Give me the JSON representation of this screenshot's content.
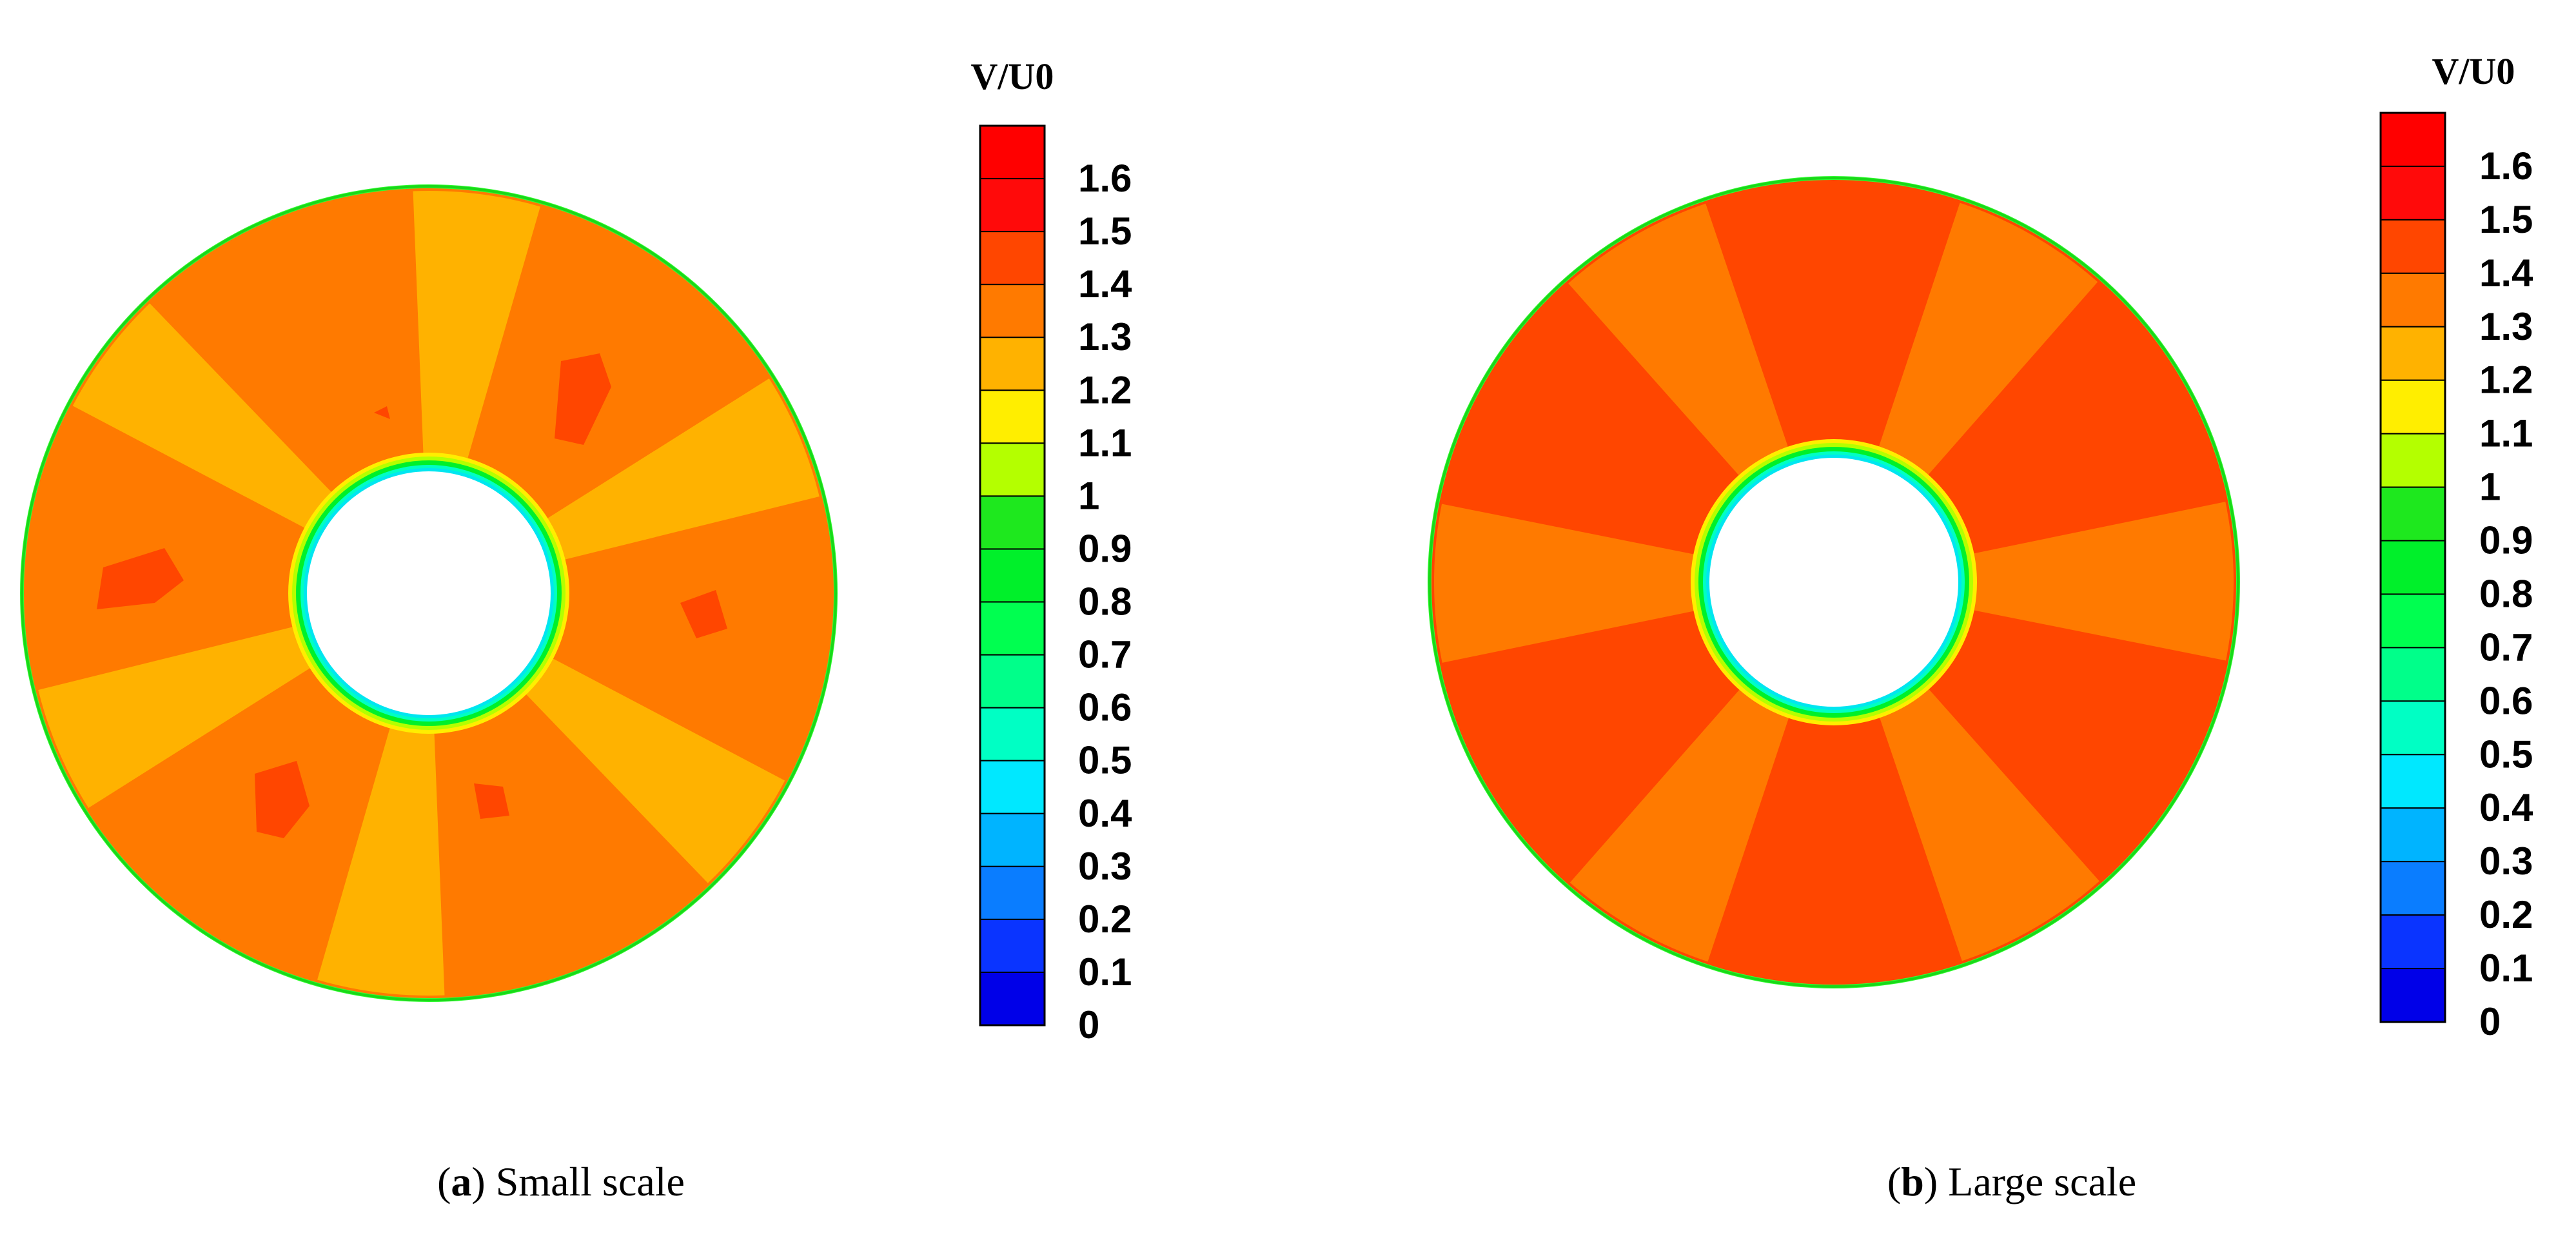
{
  "chart_data": [
    {
      "type": "contour",
      "panel_letter": "a",
      "caption": "Small scale",
      "colorbar": {
        "title": "V/U0",
        "min": 0,
        "max": 1.7,
        "ticks": [
          "1.6",
          "1.5",
          "1.4",
          "1.3",
          "1.2",
          "1.1",
          "1",
          "0.9",
          "0.8",
          "0.7",
          "0.6",
          "0.5",
          "0.4",
          "0.3",
          "0.2",
          "0.1",
          "0"
        ]
      },
      "field": {
        "background_level": 1.35,
        "spoke_level": 1.25,
        "hotspot_level": 1.45,
        "spoke_count": 6
      }
    },
    {
      "type": "contour",
      "panel_letter": "b",
      "caption": "Large scale",
      "colorbar": {
        "title": "V/U0",
        "min": 0,
        "max": 1.7,
        "ticks": [
          "1.6",
          "1.5",
          "1.4",
          "1.3",
          "1.2",
          "1.1",
          "1",
          "0.9",
          "0.8",
          "0.7",
          "0.6",
          "0.5",
          "0.4",
          "0.3",
          "0.2",
          "0.1",
          "0"
        ]
      },
      "field": {
        "background_level": 1.45,
        "spoke_level": 1.35,
        "spoke_count": 6
      }
    }
  ],
  "colors": {
    "levels": [
      "#0000e8",
      "#0a34ff",
      "#0a7dff",
      "#00b4ff",
      "#00e8ff",
      "#00ffc4",
      "#00ff8a",
      "#00ff50",
      "#00f02a",
      "#1ee81e",
      "#b4ff00",
      "#ffee00",
      "#ffb200",
      "#ff7a00",
      "#ff4600",
      "#ff0a0a",
      "#ff0000"
    ],
    "ring_edge": "#19d819",
    "ring_edge_outer": "#33ff33",
    "hub_inner": "#00e6f0"
  }
}
